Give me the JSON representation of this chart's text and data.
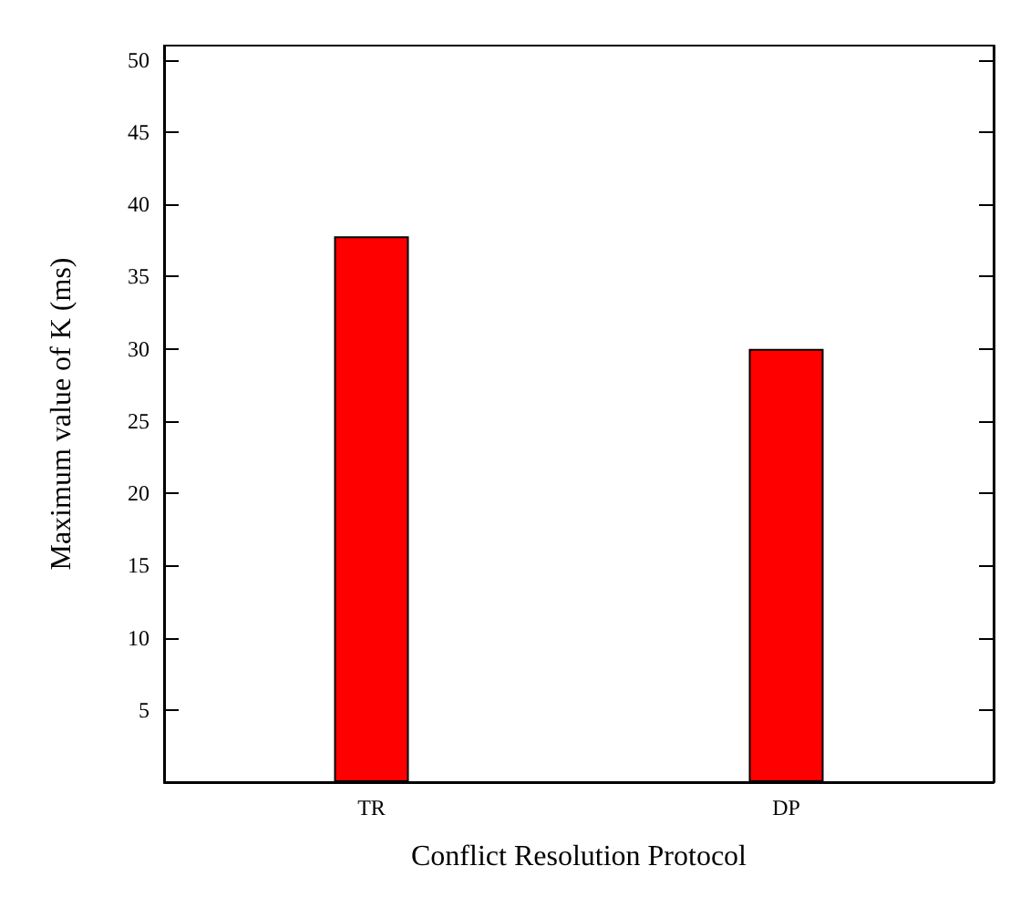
{
  "chart_data": {
    "type": "bar",
    "xlabel": "Conflict Resolution Protocol",
    "ylabel": "Maximum value of K (ms)",
    "categories": [
      "TR",
      "DP"
    ],
    "values": [
      37.8,
      30.0
    ],
    "color": "#ff0000",
    "ylim": [
      0,
      51
    ],
    "yticks": [
      5,
      10,
      15,
      20,
      25,
      30,
      35,
      40,
      45,
      50
    ],
    "grid": false
  }
}
